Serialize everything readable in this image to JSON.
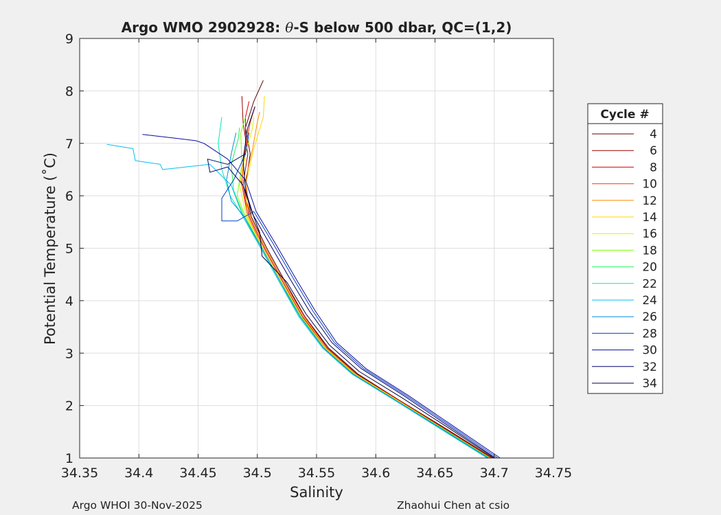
{
  "chart_data": {
    "type": "line",
    "title": "Argo WMO 2902928: θ-S below 500 dbar,  QC=(1,2)",
    "title_parts": {
      "prefix": "Argo WMO 2902928: ",
      "theta": "θ",
      "suffix": "-S below 500 dbar,  QC=(1,2)"
    },
    "xlabel": "Salinity",
    "ylabel": "Potential Temperature (˚C)",
    "xlim": [
      34.35,
      34.75
    ],
    "ylim": [
      1,
      9
    ],
    "x_ticks": [
      34.35,
      34.4,
      34.45,
      34.5,
      34.55,
      34.6,
      34.65,
      34.7,
      34.75
    ],
    "x_tick_labels": [
      "34.35",
      "34.4",
      "34.45",
      "34.5",
      "34.55",
      "34.6",
      "34.65",
      "34.7",
      "34.75"
    ],
    "y_ticks": [
      1,
      2,
      3,
      4,
      5,
      6,
      7,
      8,
      9
    ],
    "y_tick_labels": [
      "1",
      "2",
      "3",
      "4",
      "5",
      "6",
      "7",
      "8",
      "9"
    ],
    "grid": true,
    "legend_title": "Cycle #",
    "legend_position": "right",
    "series": [
      {
        "name": "4",
        "color": "#5a0000",
        "points": [
          [
            34.699,
            1.0
          ],
          [
            34.66,
            1.55
          ],
          [
            34.62,
            2.1
          ],
          [
            34.585,
            2.6
          ],
          [
            34.56,
            3.1
          ],
          [
            34.54,
            3.7
          ],
          [
            34.525,
            4.3
          ],
          [
            34.508,
            5.0
          ],
          [
            34.495,
            5.6
          ],
          [
            34.49,
            6.2
          ],
          [
            34.494,
            6.8
          ],
          [
            34.49,
            7.3
          ],
          [
            34.497,
            7.8
          ],
          [
            34.505,
            8.2
          ]
        ]
      },
      {
        "name": "6",
        "color": "#9b0000",
        "points": [
          [
            34.698,
            1.0
          ],
          [
            34.659,
            1.55
          ],
          [
            34.62,
            2.1
          ],
          [
            34.584,
            2.6
          ],
          [
            34.559,
            3.1
          ],
          [
            34.54,
            3.7
          ],
          [
            34.524,
            4.3
          ],
          [
            34.507,
            5.0
          ],
          [
            34.494,
            5.6
          ],
          [
            34.488,
            6.2
          ],
          [
            34.492,
            6.8
          ],
          [
            34.488,
            7.4
          ],
          [
            34.487,
            7.9
          ]
        ]
      },
      {
        "name": "8",
        "color": "#dd0000",
        "points": [
          [
            34.697,
            1.0
          ],
          [
            34.658,
            1.55
          ],
          [
            34.619,
            2.1
          ],
          [
            34.583,
            2.6
          ],
          [
            34.558,
            3.1
          ],
          [
            34.538,
            3.7
          ],
          [
            34.523,
            4.3
          ],
          [
            34.506,
            5.0
          ],
          [
            34.493,
            5.6
          ],
          [
            34.486,
            6.3
          ],
          [
            34.49,
            6.9
          ],
          [
            34.49,
            7.5
          ],
          [
            34.493,
            7.8
          ]
        ]
      },
      {
        "name": "10",
        "color": "#ff3a00",
        "points": [
          [
            34.696,
            1.0
          ],
          [
            34.657,
            1.55
          ],
          [
            34.618,
            2.1
          ],
          [
            34.582,
            2.6
          ],
          [
            34.557,
            3.1
          ],
          [
            34.537,
            3.7
          ],
          [
            34.522,
            4.3
          ],
          [
            34.505,
            5.0
          ],
          [
            34.492,
            5.6
          ],
          [
            34.487,
            6.2
          ],
          [
            34.489,
            6.8
          ],
          [
            34.494,
            7.4
          ],
          [
            34.498,
            7.7
          ]
        ]
      },
      {
        "name": "12",
        "color": "#ff8c00",
        "points": [
          [
            34.697,
            1.0
          ],
          [
            34.658,
            1.55
          ],
          [
            34.619,
            2.1
          ],
          [
            34.583,
            2.6
          ],
          [
            34.558,
            3.1
          ],
          [
            34.539,
            3.7
          ],
          [
            34.524,
            4.3
          ],
          [
            34.507,
            5.0
          ],
          [
            34.494,
            5.6
          ],
          [
            34.49,
            6.3
          ],
          [
            34.496,
            6.9
          ],
          [
            34.5,
            7.4
          ],
          [
            34.502,
            7.6
          ]
        ]
      },
      {
        "name": "14",
        "color": "#ffd800",
        "points": [
          [
            34.696,
            1.0
          ],
          [
            34.657,
            1.55
          ],
          [
            34.618,
            2.1
          ],
          [
            34.582,
            2.6
          ],
          [
            34.556,
            3.1
          ],
          [
            34.536,
            3.7
          ],
          [
            34.521,
            4.3
          ],
          [
            34.504,
            5.0
          ],
          [
            34.492,
            5.6
          ],
          [
            34.49,
            6.2
          ],
          [
            34.497,
            6.9
          ],
          [
            34.505,
            7.5
          ],
          [
            34.506,
            7.9
          ]
        ]
      },
      {
        "name": "16",
        "color": "#d8f000",
        "points": [
          [
            34.696,
            1.0
          ],
          [
            34.657,
            1.55
          ],
          [
            34.618,
            2.1
          ],
          [
            34.582,
            2.6
          ],
          [
            34.557,
            3.1
          ],
          [
            34.537,
            3.7
          ],
          [
            34.522,
            4.3
          ],
          [
            34.505,
            5.0
          ],
          [
            34.491,
            5.6
          ],
          [
            34.485,
            6.2
          ],
          [
            34.49,
            6.8
          ],
          [
            34.496,
            7.3
          ],
          [
            34.497,
            7.5
          ]
        ]
      },
      {
        "name": "18",
        "color": "#7cff00",
        "points": [
          [
            34.695,
            1.0
          ],
          [
            34.656,
            1.55
          ],
          [
            34.617,
            2.1
          ],
          [
            34.581,
            2.6
          ],
          [
            34.556,
            3.1
          ],
          [
            34.537,
            3.7
          ],
          [
            34.521,
            4.3
          ],
          [
            34.504,
            5.0
          ],
          [
            34.49,
            5.6
          ],
          [
            34.483,
            6.0
          ],
          [
            34.487,
            6.6
          ],
          [
            34.486,
            7.2
          ],
          [
            34.49,
            7.5
          ]
        ]
      },
      {
        "name": "20",
        "color": "#22f060",
        "points": [
          [
            34.696,
            1.0
          ],
          [
            34.657,
            1.55
          ],
          [
            34.617,
            2.1
          ],
          [
            34.581,
            2.6
          ],
          [
            34.556,
            3.1
          ],
          [
            34.536,
            3.7
          ],
          [
            34.52,
            4.3
          ],
          [
            34.503,
            5.0
          ],
          [
            34.489,
            5.6
          ],
          [
            34.48,
            6.1
          ],
          [
            34.478,
            6.6
          ],
          [
            34.484,
            7.1
          ],
          [
            34.485,
            7.3
          ]
        ]
      },
      {
        "name": "22",
        "color": "#00e8b8",
        "points": [
          [
            34.695,
            1.0
          ],
          [
            34.656,
            1.55
          ],
          [
            34.617,
            2.1
          ],
          [
            34.58,
            2.6
          ],
          [
            34.555,
            3.1
          ],
          [
            34.535,
            3.7
          ],
          [
            34.52,
            4.3
          ],
          [
            34.503,
            5.0
          ],
          [
            34.488,
            5.6
          ],
          [
            34.477,
            6.0
          ],
          [
            34.47,
            6.5
          ],
          [
            34.467,
            7.0
          ],
          [
            34.47,
            7.5
          ]
        ]
      },
      {
        "name": "24",
        "color": "#00c0f0",
        "points": [
          [
            34.694,
            1.0
          ],
          [
            34.655,
            1.55
          ],
          [
            34.616,
            2.1
          ],
          [
            34.58,
            2.6
          ],
          [
            34.555,
            3.1
          ],
          [
            34.535,
            3.7
          ],
          [
            34.52,
            4.3
          ],
          [
            34.503,
            5.0
          ],
          [
            34.488,
            5.6
          ],
          [
            34.478,
            6.2
          ],
          [
            34.46,
            6.6
          ],
          [
            34.42,
            6.5
          ],
          [
            34.418,
            6.6
          ],
          [
            34.397,
            6.67
          ],
          [
            34.395,
            6.9
          ],
          [
            34.373,
            6.98
          ]
        ]
      },
      {
        "name": "26",
        "color": "#0090dd",
        "points": [
          [
            34.695,
            1.0
          ],
          [
            34.656,
            1.55
          ],
          [
            34.617,
            2.1
          ],
          [
            34.581,
            2.6
          ],
          [
            34.556,
            3.1
          ],
          [
            34.536,
            3.7
          ],
          [
            34.521,
            4.3
          ],
          [
            34.504,
            5.0
          ],
          [
            34.489,
            5.6
          ],
          [
            34.478,
            5.9
          ],
          [
            34.474,
            6.3
          ],
          [
            34.478,
            6.8
          ],
          [
            34.482,
            7.2
          ]
        ]
      },
      {
        "name": "28",
        "color": "#0040c8",
        "points": [
          [
            34.703,
            1.0
          ],
          [
            34.664,
            1.6
          ],
          [
            34.625,
            2.2
          ],
          [
            34.59,
            2.7
          ],
          [
            34.565,
            3.2
          ],
          [
            34.547,
            3.8
          ],
          [
            34.531,
            4.4
          ],
          [
            34.513,
            5.1
          ],
          [
            34.497,
            5.7
          ],
          [
            34.483,
            5.52
          ],
          [
            34.47,
            5.52
          ],
          [
            34.47,
            5.95
          ],
          [
            34.48,
            6.3
          ],
          [
            34.49,
            6.8
          ],
          [
            34.493,
            7.2
          ]
        ]
      },
      {
        "name": "30",
        "color": "#0a0aa0",
        "points": [
          [
            34.705,
            1.0
          ],
          [
            34.666,
            1.6
          ],
          [
            34.627,
            2.2
          ],
          [
            34.592,
            2.7
          ],
          [
            34.567,
            3.2
          ],
          [
            34.549,
            3.8
          ],
          [
            34.533,
            4.4
          ],
          [
            34.515,
            5.1
          ],
          [
            34.499,
            5.7
          ],
          [
            34.49,
            6.3
          ],
          [
            34.475,
            6.7
          ],
          [
            34.455,
            7.0
          ],
          [
            34.448,
            7.05
          ],
          [
            34.43,
            7.1
          ],
          [
            34.403,
            7.17
          ]
        ]
      },
      {
        "name": "32",
        "color": "#00006a",
        "points": [
          [
            34.701,
            1.0
          ],
          [
            34.662,
            1.6
          ],
          [
            34.623,
            2.2
          ],
          [
            34.588,
            2.7
          ],
          [
            34.563,
            3.2
          ],
          [
            34.544,
            3.8
          ],
          [
            34.528,
            4.4
          ],
          [
            34.51,
            5.1
          ],
          [
            34.496,
            5.65
          ],
          [
            34.488,
            6.2
          ],
          [
            34.475,
            6.55
          ],
          [
            34.46,
            6.45
          ],
          [
            34.458,
            6.7
          ],
          [
            34.475,
            6.6
          ],
          [
            34.49,
            6.8
          ]
        ]
      },
      {
        "name": "34",
        "color": "#000040",
        "points": [
          [
            34.7,
            1.0
          ],
          [
            34.661,
            1.58
          ],
          [
            34.622,
            2.15
          ],
          [
            34.586,
            2.65
          ],
          [
            34.561,
            3.15
          ],
          [
            34.541,
            3.75
          ],
          [
            34.525,
            4.35
          ],
          [
            34.504,
            4.85
          ],
          [
            34.502,
            5.3
          ],
          [
            34.497,
            5.6
          ],
          [
            34.49,
            6.1
          ],
          [
            34.488,
            6.7
          ],
          [
            34.492,
            7.3
          ],
          [
            34.498,
            7.7
          ]
        ]
      }
    ]
  },
  "footer": {
    "left_text": "Argo WHOI 30-Nov-2025",
    "right_text": "Zhaohui Chen at csio"
  }
}
